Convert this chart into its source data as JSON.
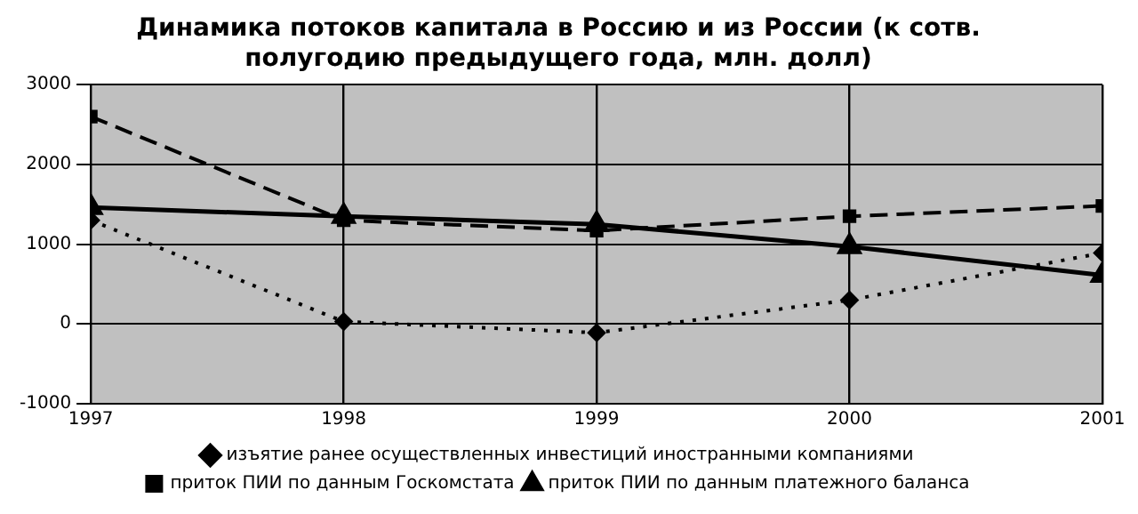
{
  "chart_data": {
    "type": "line",
    "title": "Динамика потоков капитала в Россию и из России (к сотв. полугодию предыдущего года, млн. долл)",
    "x": [
      1997,
      1998,
      1999,
      2000,
      2001
    ],
    "series": [
      {
        "name": "изъятие ранее осуществленных инвестиций иностранными компаниями",
        "color": "#000000",
        "marker": "diamond",
        "line_style": "dotted",
        "values": [
          1300,
          30,
          -110,
          300,
          890
        ]
      },
      {
        "name": "приток ПИИ по данным Госкомстата",
        "color": "#000000",
        "marker": "square",
        "line_style": "dashed",
        "values": [
          2600,
          1300,
          1170,
          1350,
          1480
        ]
      },
      {
        "name": "приток ПИИ по данным платежного баланса",
        "color": "#000000",
        "marker": "triangle",
        "line_style": "solid",
        "values": [
          1460,
          1350,
          1250,
          970,
          610
        ]
      }
    ],
    "xlim": [
      1997,
      2001
    ],
    "xticks": [
      1997,
      1998,
      1999,
      2000,
      2001
    ],
    "ylim": [
      -1000,
      3000
    ],
    "yticks": [
      -1000,
      0,
      1000,
      2000,
      3000
    ],
    "grid": true,
    "legend": "bottom"
  }
}
